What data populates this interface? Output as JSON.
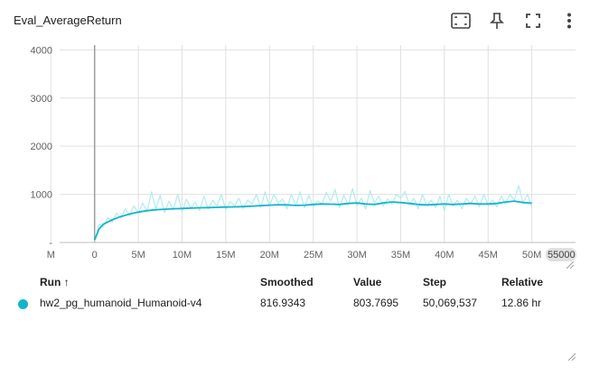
{
  "card": {
    "title": "Eval_AverageReturn",
    "tools": [
      "fit-domain-icon",
      "pin-icon",
      "fullscreen-icon",
      "more-vert-icon"
    ]
  },
  "colors": {
    "accent": "#12b5cb",
    "raw_line": "#b2ebf2",
    "grid": "#e0e0e0",
    "axis_text": "#616161"
  },
  "chart_data": {
    "type": "line",
    "title": "",
    "xlabel": "",
    "ylabel": "",
    "xlim": [
      -4000000,
      55000000
    ],
    "ylim": [
      0,
      4100
    ],
    "x_ticks": [
      "M",
      "0",
      "5M",
      "10M",
      "15M",
      "20M",
      "25M",
      "30M",
      "35M",
      "40M",
      "45M",
      "50M"
    ],
    "x_tick_values": [
      -5000000,
      0,
      5000000,
      10000000,
      15000000,
      20000000,
      25000000,
      30000000,
      35000000,
      40000000,
      45000000,
      50000000
    ],
    "x_edge_label": "55000",
    "y_ticks": [
      "4000",
      "3000",
      "2000",
      "1000",
      "-"
    ],
    "y_tick_values": [
      4000,
      3000,
      2000,
      1000,
      0
    ],
    "grid": true,
    "legend": "none",
    "series": [
      {
        "smoothed_x": [
          0,
          0.5,
          1,
          2,
          3,
          4,
          5,
          6,
          7,
          8,
          9,
          10,
          11,
          12,
          13,
          14,
          15,
          16,
          17,
          18,
          19,
          20,
          21,
          22,
          23,
          24,
          25,
          26,
          27,
          28,
          29,
          30,
          31,
          32,
          33,
          34,
          35,
          36,
          37,
          38,
          39,
          40,
          41,
          42,
          43,
          44,
          45,
          46,
          47,
          48,
          49,
          50
        ],
        "smoothed_y": [
          50,
          280,
          380,
          470,
          540,
          590,
          630,
          660,
          680,
          690,
          700,
          705,
          715,
          720,
          725,
          730,
          735,
          740,
          745,
          755,
          765,
          775,
          785,
          780,
          770,
          775,
          790,
          800,
          795,
          790,
          810,
          820,
          800,
          790,
          820,
          840,
          830,
          810,
          790,
          780,
          790,
          800,
          790,
          800,
          810,
          800,
          800,
          810,
          840,
          860,
          830,
          817
        ],
        "raw_x": [
          0,
          0.5,
          1,
          1.5,
          2,
          2.5,
          3,
          3.5,
          4,
          4.5,
          5,
          5.5,
          6,
          6.5,
          7,
          7.5,
          8,
          8.5,
          9,
          9.5,
          10,
          10.5,
          11,
          11.5,
          12,
          12.5,
          13,
          13.5,
          14,
          14.5,
          15,
          15.5,
          16,
          16.5,
          17,
          17.5,
          18,
          18.5,
          19,
          19.5,
          20,
          20.5,
          21,
          21.5,
          22,
          22.5,
          23,
          23.5,
          24,
          24.5,
          25,
          25.5,
          26,
          26.5,
          27,
          27.5,
          28,
          28.5,
          29,
          29.5,
          30,
          30.5,
          31,
          31.5,
          32,
          32.5,
          33,
          33.5,
          34,
          34.5,
          35,
          35.5,
          36,
          36.5,
          37,
          37.5,
          38,
          38.5,
          39,
          39.5,
          40,
          40.5,
          41,
          41.5,
          42,
          42.5,
          43,
          43.5,
          44,
          44.5,
          45,
          45.5,
          46,
          46.5,
          47,
          47.5,
          48,
          48.5,
          49,
          49.5,
          50
        ],
        "raw_y": [
          20,
          380,
          320,
          520,
          420,
          610,
          500,
          700,
          560,
          760,
          600,
          820,
          640,
          1050,
          700,
          980,
          620,
          860,
          680,
          1000,
          640,
          900,
          720,
          840,
          660,
          960,
          700,
          880,
          760,
          1000,
          680,
          850,
          760,
          920,
          700,
          880,
          800,
          1000,
          720,
          1050,
          760,
          1000,
          820,
          900,
          700,
          1000,
          760,
          1050,
          720,
          980,
          740,
          860,
          800,
          1040,
          860,
          1100,
          720,
          980,
          780,
          1120,
          760,
          920,
          700,
          1080,
          820,
          960,
          760,
          900,
          800,
          1000,
          920,
          1060,
          780,
          920,
          700,
          1000,
          760,
          880,
          720,
          960,
          660,
          1000,
          760,
          880,
          700,
          920,
          800,
          960,
          740,
          1000,
          780,
          880,
          740,
          960,
          800,
          1000,
          880,
          1180,
          820,
          1000,
          740,
          900,
          780
        ]
      }
    ]
  },
  "table": {
    "headers": {
      "run": "Run ↑",
      "smoothed": "Smoothed",
      "value": "Value",
      "step": "Step",
      "relative": "Relative"
    },
    "rows": [
      {
        "run": "hw2_pg_humanoid_Humanoid-v4",
        "smoothed": "816.9343",
        "value": "803.7695",
        "step": "50,069,537",
        "relative": "12.86 hr"
      }
    ]
  }
}
